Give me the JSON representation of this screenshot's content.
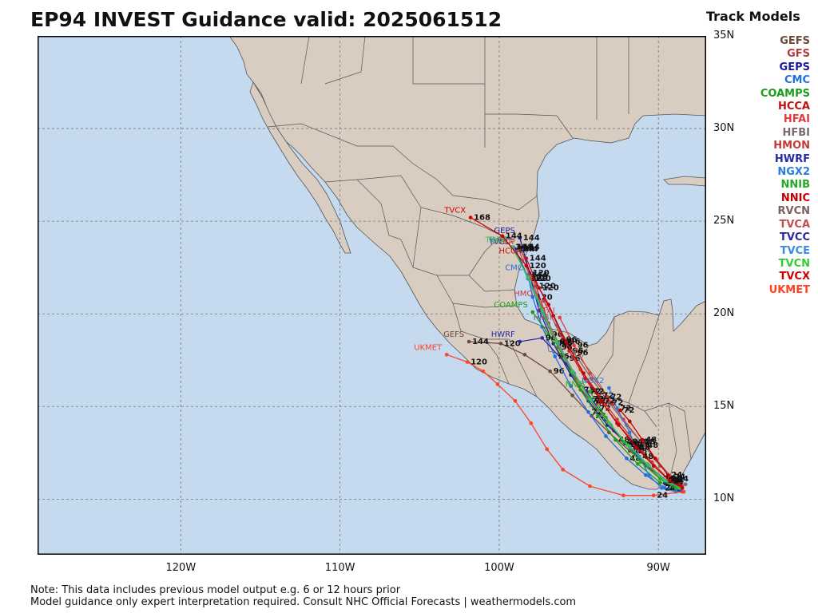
{
  "header": {
    "title": "EP94 INVEST Guidance valid: 2025061512",
    "legend_title": "Track Models"
  },
  "legend": [
    {
      "name": "GEFS",
      "color": "#6b4a3c"
    },
    {
      "name": "GFS",
      "color": "#b23b3b"
    },
    {
      "name": "GEPS",
      "color": "#1a1a9c"
    },
    {
      "name": "CMC",
      "color": "#1f6fe0"
    },
    {
      "name": "COAMPS",
      "color": "#1a9e1a"
    },
    {
      "name": "HCCA",
      "color": "#c01010"
    },
    {
      "name": "HFAI",
      "color": "#e03a3a"
    },
    {
      "name": "HFBI",
      "color": "#7a6a6a"
    },
    {
      "name": "HMON",
      "color": "#c43a3a"
    },
    {
      "name": "HWRF",
      "color": "#2a2aa8"
    },
    {
      "name": "NGX2",
      "color": "#2a7adf"
    },
    {
      "name": "NNIB",
      "color": "#22aa22"
    },
    {
      "name": "NNIC",
      "color": "#c00000"
    },
    {
      "name": "RVCN",
      "color": "#7a6060"
    },
    {
      "name": "TVCA",
      "color": "#c05050"
    },
    {
      "name": "TVCC",
      "color": "#2a2aa0"
    },
    {
      "name": "TVCE",
      "color": "#3a8ae0"
    },
    {
      "name": "TVCN",
      "color": "#33cc33"
    },
    {
      "name": "TVCX",
      "color": "#cc0000"
    },
    {
      "name": "UKMET",
      "color": "#ff4422"
    }
  ],
  "axes": {
    "lat_labels": [
      "35N",
      "30N",
      "25N",
      "20N",
      "15N",
      "10N"
    ],
    "lon_labels": [
      "120W",
      "110W",
      "100W",
      "90W"
    ],
    "lat_range": [
      7,
      35
    ],
    "lon_range": [
      -129,
      -87
    ]
  },
  "colors": {
    "ocean": "#c5d9ef",
    "land": "#d9ccc0",
    "border": "#555555",
    "grid": "#777777"
  },
  "tracks": [
    {
      "model": "GEFS",
      "color": "#6b4a3c",
      "label": "GEFS",
      "pts": [
        [
          -88.6,
          10.7
        ],
        [
          -89.5,
          11.0
        ],
        [
          -90.6,
          11.7
        ],
        [
          -91.8,
          12.6
        ],
        [
          -93.1,
          13.6
        ],
        [
          -94.2,
          14.5
        ],
        [
          -95.4,
          15.6
        ],
        [
          -96.8,
          16.9
        ],
        [
          -98.4,
          17.8
        ],
        [
          -99.9,
          18.4
        ],
        [
          -101.9,
          18.5
        ]
      ],
      "taus": [
        "",
        "24",
        "",
        "48",
        "",
        "72",
        "",
        "96",
        "",
        "120",
        "144"
      ]
    },
    {
      "model": "GFS",
      "color": "#b23b3b",
      "label": "GFS",
      "pts": [
        [
          -88.5,
          10.4
        ],
        [
          -89.3,
          10.8
        ],
        [
          -90.4,
          11.6
        ],
        [
          -91.6,
          12.6
        ],
        [
          -92.8,
          13.7
        ],
        [
          -93.9,
          14.9
        ],
        [
          -95.0,
          16.1
        ],
        [
          -95.8,
          17.6
        ],
        [
          -96.9,
          19.5
        ],
        [
          -97.7,
          21.5
        ],
        [
          -98.7,
          23.6
        ]
      ],
      "taus": [
        "",
        "24",
        "",
        "48",
        "",
        "72",
        "",
        "96",
        "",
        "120",
        "144"
      ]
    },
    {
      "model": "GEPS",
      "color": "#1a1a9c",
      "label": "GEPS",
      "pts": [
        [
          -88.6,
          10.5
        ],
        [
          -89.4,
          10.9
        ],
        [
          -90.6,
          11.8
        ],
        [
          -91.9,
          12.9
        ],
        [
          -93.2,
          14.0
        ],
        [
          -94.4,
          15.3
        ],
        [
          -95.5,
          16.7
        ],
        [
          -96.6,
          18.4
        ],
        [
          -97.5,
          20.2
        ],
        [
          -98.1,
          22.2
        ],
        [
          -98.7,
          24.1
        ]
      ],
      "taus": [
        "",
        "24",
        "",
        "48",
        "",
        "72",
        "",
        "96",
        "",
        "120",
        "144"
      ]
    },
    {
      "model": "CMC",
      "color": "#1f6fe0",
      "label": "CMC",
      "pts": [
        [
          -88.6,
          10.5
        ],
        [
          -89.6,
          10.6
        ],
        [
          -90.8,
          11.3
        ],
        [
          -92.0,
          12.2
        ],
        [
          -93.3,
          13.4
        ],
        [
          -94.4,
          14.7
        ],
        [
          -95.5,
          16.1
        ],
        [
          -96.5,
          17.7
        ],
        [
          -97.3,
          19.3
        ],
        [
          -97.9,
          20.9
        ],
        [
          -98.2,
          22.1
        ]
      ],
      "taus": [
        "",
        "24",
        "",
        "48",
        "",
        "72",
        "",
        "96",
        "",
        "120",
        "144"
      ]
    },
    {
      "model": "COAMPS",
      "color": "#1a9e1a",
      "label": "COAMPS",
      "pts": [
        [
          -88.8,
          10.5
        ],
        [
          -89.9,
          10.9
        ],
        [
          -91.3,
          11.9
        ],
        [
          -92.7,
          13.2
        ],
        [
          -93.8,
          14.5
        ],
        [
          -94.9,
          15.9
        ],
        [
          -95.8,
          17.3
        ],
        [
          -96.9,
          18.9
        ],
        [
          -97.9,
          20.1
        ]
      ],
      "taus": [
        "",
        "24",
        "",
        "48",
        "",
        "72",
        "",
        "96",
        ""
      ]
    },
    {
      "model": "HCCA",
      "color": "#c01010",
      "label": "HCCA",
      "pts": [
        [
          -88.5,
          10.6
        ],
        [
          -89.3,
          11.0
        ],
        [
          -90.3,
          11.8
        ],
        [
          -91.4,
          12.9
        ],
        [
          -92.6,
          14.1
        ],
        [
          -93.6,
          15.3
        ],
        [
          -94.6,
          16.5
        ],
        [
          -95.6,
          18.0
        ],
        [
          -96.6,
          19.9
        ],
        [
          -97.5,
          21.4
        ],
        [
          -98.3,
          23.0
        ]
      ],
      "taus": [
        "",
        "24",
        "",
        "48",
        "",
        "72",
        "",
        "96",
        "",
        "120",
        "144"
      ]
    },
    {
      "model": "HFAI",
      "color": "#e03a3a",
      "label": "HFAI",
      "pts": [
        [
          -88.5,
          10.7
        ],
        [
          -89.2,
          11.2
        ],
        [
          -90.1,
          12.1
        ],
        [
          -91.1,
          13.1
        ],
        [
          -92.2,
          14.3
        ],
        [
          -93.2,
          15.5
        ],
        [
          -94.3,
          16.8
        ],
        [
          -95.3,
          18.3
        ],
        [
          -96.2,
          19.8
        ]
      ],
      "taus": [
        "",
        "24",
        "",
        "48",
        "",
        "72",
        "",
        "96",
        ""
      ]
    },
    {
      "model": "HFBI",
      "color": "#7a6a6a",
      "label": "HFBI",
      "pts": [
        [
          -88.3,
          10.8
        ],
        [
          -89.0,
          11.1
        ],
        [
          -89.9,
          11.8
        ],
        [
          -90.9,
          12.9
        ],
        [
          -92.0,
          14.0
        ],
        [
          -93.1,
          15.2
        ],
        [
          -94.2,
          16.5
        ],
        [
          -95.3,
          17.9
        ],
        [
          -96.4,
          19.4
        ]
      ],
      "taus": [
        "",
        "24",
        "",
        "48",
        "",
        "72",
        "",
        "96",
        ""
      ]
    },
    {
      "model": "HMON",
      "color": "#c43a3a",
      "label": "HMON",
      "pts": [
        [
          -88.6,
          10.6
        ],
        [
          -89.4,
          11.1
        ],
        [
          -90.4,
          12.0
        ],
        [
          -91.5,
          13.1
        ],
        [
          -92.6,
          14.3
        ],
        [
          -93.7,
          15.6
        ],
        [
          -94.9,
          17.0
        ],
        [
          -96.0,
          18.6
        ],
        [
          -97.2,
          20.7
        ]
      ],
      "taus": [
        "",
        "24",
        "",
        "48",
        "",
        "72",
        "",
        "96",
        ""
      ]
    },
    {
      "model": "HWRF",
      "color": "#2a2aa8",
      "label": "HWRF",
      "pts": [
        [
          -88.7,
          10.5
        ],
        [
          -89.6,
          10.9
        ],
        [
          -90.8,
          11.8
        ],
        [
          -92.1,
          13.0
        ],
        [
          -93.3,
          14.3
        ],
        [
          -94.5,
          15.8
        ],
        [
          -95.8,
          17.3
        ],
        [
          -97.3,
          18.7
        ],
        [
          -98.7,
          18.5
        ]
      ],
      "taus": [
        "",
        "24",
        "",
        "48",
        "",
        "72",
        "",
        "96",
        ""
      ]
    },
    {
      "model": "NGX2",
      "color": "#2a7adf",
      "label": "NGX2",
      "pts": [
        [
          -88.9,
          10.4
        ],
        [
          -89.8,
          10.6
        ],
        [
          -90.6,
          11.3
        ],
        [
          -91.2,
          12.3
        ],
        [
          -91.8,
          13.6
        ],
        [
          -92.6,
          14.9
        ],
        [
          -93.1,
          16.0
        ]
      ],
      "taus": [
        "",
        "24",
        "",
        "48",
        "",
        "72",
        ""
      ]
    },
    {
      "model": "NNIB",
      "color": "#22aa22",
      "label": "NNIB",
      "pts": [
        [
          -88.9,
          10.6
        ],
        [
          -89.9,
          11.1
        ],
        [
          -91.1,
          12.0
        ],
        [
          -92.2,
          13.1
        ],
        [
          -93.3,
          14.4
        ],
        [
          -94.3,
          15.8
        ]
      ],
      "taus": [
        "",
        "24",
        "",
        "48",
        "",
        "72"
      ]
    },
    {
      "model": "NNIC",
      "color": "#c00000",
      "label": "NNIC",
      "pts": [
        [
          -88.6,
          10.7
        ],
        [
          -89.4,
          11.3
        ],
        [
          -90.2,
          12.2
        ],
        [
          -91.0,
          13.2
        ],
        [
          -91.8,
          14.2
        ],
        [
          -92.4,
          14.8
        ]
      ],
      "taus": [
        "",
        "24",
        "",
        "48",
        "",
        "72"
      ]
    },
    {
      "model": "RVCN",
      "color": "#7a6060",
      "label": "",
      "pts": [
        [
          -88.6,
          10.6
        ],
        [
          -89.5,
          11.0
        ],
        [
          -90.6,
          11.8
        ],
        [
          -91.8,
          12.8
        ],
        [
          -93.0,
          14.0
        ],
        [
          -94.2,
          15.3
        ],
        [
          -95.3,
          16.7
        ],
        [
          -96.3,
          18.2
        ],
        [
          -97.2,
          19.8
        ]
      ],
      "taus": [
        "",
        "24",
        "",
        "48",
        "",
        "72",
        "",
        "96",
        ""
      ]
    },
    {
      "model": "TVCA",
      "color": "#c05050",
      "label": "TVCA",
      "pts": [
        [
          -88.6,
          10.6
        ],
        [
          -89.5,
          11.0
        ],
        [
          -90.6,
          11.8
        ],
        [
          -91.8,
          12.8
        ],
        [
          -93.0,
          14.0
        ],
        [
          -94.2,
          15.3
        ],
        [
          -95.3,
          16.8
        ],
        [
          -96.3,
          18.4
        ],
        [
          -97.2,
          20.1
        ],
        [
          -98.0,
          21.9
        ],
        [
          -98.8,
          23.5
        ]
      ],
      "taus": [
        "",
        "24",
        "",
        "48",
        "",
        "72",
        "",
        "96",
        "",
        "120",
        "144"
      ]
    },
    {
      "model": "TVCC",
      "color": "#2a2aa0",
      "label": "TVCC",
      "pts": [
        [
          -88.7,
          10.6
        ],
        [
          -89.6,
          11.0
        ],
        [
          -90.7,
          11.9
        ],
        [
          -91.9,
          12.9
        ],
        [
          -93.1,
          14.1
        ],
        [
          -94.3,
          15.4
        ],
        [
          -95.4,
          16.9
        ],
        [
          -96.4,
          18.5
        ],
        [
          -97.3,
          20.2
        ],
        [
          -98.2,
          22.0
        ],
        [
          -99.0,
          23.5
        ]
      ],
      "taus": [
        "",
        "24",
        "",
        "48",
        "",
        "72",
        "",
        "96",
        "",
        "120",
        "144"
      ]
    },
    {
      "model": "TVCE",
      "color": "#3a8ae0",
      "label": "TVCE",
      "pts": [
        [
          -88.6,
          10.6
        ],
        [
          -89.5,
          11.0
        ],
        [
          -90.6,
          11.8
        ],
        [
          -91.8,
          12.8
        ],
        [
          -93.0,
          14.0
        ],
        [
          -94.2,
          15.3
        ],
        [
          -95.3,
          16.8
        ],
        [
          -96.3,
          18.4
        ],
        [
          -97.3,
          20.1
        ],
        [
          -98.2,
          21.9
        ],
        [
          -99.1,
          23.6
        ]
      ],
      "taus": [
        "",
        "24",
        "",
        "48",
        "",
        "72",
        "",
        "96",
        "",
        "120",
        "144"
      ]
    },
    {
      "model": "TVCN",
      "color": "#33cc33",
      "label": "TVCN",
      "pts": [
        [
          -88.7,
          10.6
        ],
        [
          -89.6,
          11.0
        ],
        [
          -90.7,
          11.9
        ],
        [
          -91.9,
          12.9
        ],
        [
          -93.1,
          14.1
        ],
        [
          -94.3,
          15.4
        ],
        [
          -95.4,
          16.9
        ],
        [
          -96.4,
          18.5
        ],
        [
          -97.3,
          20.2
        ],
        [
          -98.2,
          22.0
        ],
        [
          -99.2,
          23.6
        ]
      ],
      "taus": [
        "",
        "24",
        "",
        "48",
        "",
        "72",
        "",
        "96",
        "",
        "120",
        "144"
      ]
    },
    {
      "model": "TVCX",
      "color": "#cc0000",
      "label": "TVCX",
      "pts": [
        [
          -88.5,
          10.6
        ],
        [
          -89.3,
          11.0
        ],
        [
          -90.3,
          11.8
        ],
        [
          -91.4,
          12.8
        ],
        [
          -92.5,
          14.0
        ],
        [
          -93.6,
          15.3
        ],
        [
          -94.7,
          16.8
        ],
        [
          -95.8,
          18.5
        ],
        [
          -96.9,
          20.5
        ],
        [
          -98.3,
          22.6
        ],
        [
          -99.8,
          24.2
        ],
        [
          -101.8,
          25.2
        ]
      ],
      "taus": [
        "",
        "24",
        "",
        "48",
        "",
        "72",
        "",
        "96",
        "",
        "120",
        "144",
        "168"
      ]
    },
    {
      "model": "UKMET",
      "color": "#ff4422",
      "label": "UKMET",
      "pts": [
        [
          -88.4,
          10.4
        ],
        [
          -90.3,
          10.2
        ],
        [
          -92.2,
          10.2
        ],
        [
          -94.3,
          10.7
        ],
        [
          -96.0,
          11.6
        ],
        [
          -97.0,
          12.7
        ],
        [
          -98.0,
          14.1
        ],
        [
          -99.0,
          15.3
        ],
        [
          -100.1,
          16.2
        ],
        [
          -101.0,
          16.9
        ],
        [
          -102.0,
          17.4
        ],
        [
          -103.3,
          17.8
        ]
      ],
      "taus": [
        "",
        "24",
        "",
        "",
        "",
        "",
        "",
        "",
        "",
        "",
        "120",
        ""
      ]
    }
  ],
  "notes": {
    "line1": "Note: This data includes previous model output e.g. 6 or 12 hours prior",
    "line2": "Model guidance only expert interpretation required. Consult NHC Official Forecasts | weathermodels.com"
  }
}
